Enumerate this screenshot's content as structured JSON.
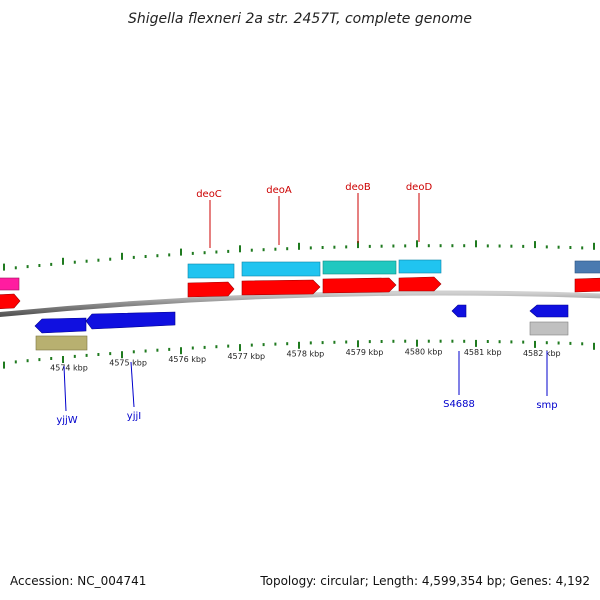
{
  "title": "Shigella flexneri 2a str. 2457T, complete genome",
  "footer": {
    "accession_label": "Accession:",
    "accession": "NC_004741",
    "topology_label": "Topology:",
    "topology": "circular",
    "length_label": "Length:",
    "length": "4,599,354 bp",
    "genes_label": "Genes:",
    "genes": "4,192"
  },
  "colors": {
    "backbone": "#8a8a8a",
    "tick": "#1f7a1f",
    "label_top": "#cc0000",
    "label_bottom": "#0000cc",
    "gene_red": "#ff0000",
    "gene_blue": "#1010e0",
    "gene_cyan": "#20c4f0",
    "gene_teal": "#20c8c0",
    "gene_olive": "#b8b070",
    "gene_gray": "#c0c0c0",
    "gene_steel": "#4a7ab0",
    "gene_magenta": "#ff1ca0"
  },
  "ticks": [
    {
      "label": "4574 kbp"
    },
    {
      "label": "4575 kbp"
    },
    {
      "label": "4576 kbp"
    },
    {
      "label": "4577 kbp"
    },
    {
      "label": "4578 kbp"
    },
    {
      "label": "4579 kbp"
    },
    {
      "label": "4580 kbp"
    },
    {
      "label": "4581 kbp"
    },
    {
      "label": "4582 kbp"
    }
  ],
  "gene_labels_top": [
    {
      "name": "deoC"
    },
    {
      "name": "deoA"
    },
    {
      "name": "deoB"
    },
    {
      "name": "deoD"
    }
  ],
  "gene_labels_bottom": [
    {
      "name": "yjjW"
    },
    {
      "name": "yjjI"
    },
    {
      "name": "S4688"
    },
    {
      "name": "smp"
    }
  ]
}
